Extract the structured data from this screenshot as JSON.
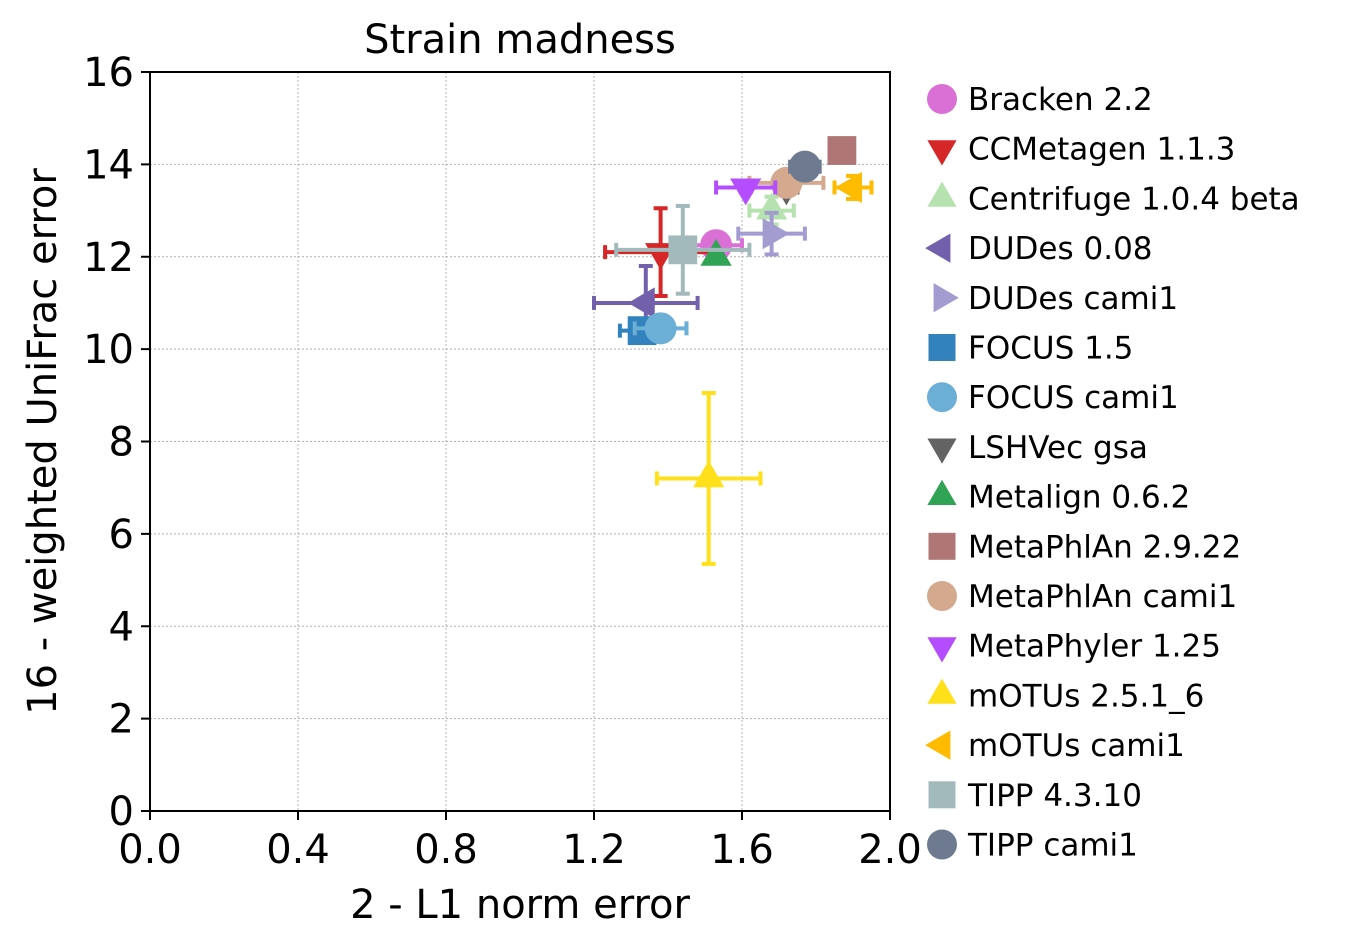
{
  "chart_data": {
    "type": "scatter",
    "title": "Strain madness",
    "xlabel": "2 - L1 norm error",
    "ylabel": "16 - weighted UniFrac error",
    "xlim": [
      0.0,
      2.0
    ],
    "ylim": [
      0,
      16
    ],
    "xticks": [
      "0.0",
      "0.4",
      "0.8",
      "1.2",
      "1.6",
      "2.0"
    ],
    "yticks": [
      "0",
      "2",
      "4",
      "6",
      "8",
      "10",
      "12",
      "14",
      "16"
    ],
    "grid": true,
    "legend_position": "right, outside plot",
    "series": [
      {
        "name": "Bracken 2.2",
        "marker": "circle",
        "color": "#da70d6",
        "x": 1.53,
        "y": 12.25,
        "xerr": 0.07,
        "yerr": 0.0
      },
      {
        "name": "CCMetagen 1.1.3",
        "marker": "triangle-down",
        "color": "#d62728",
        "x": 1.38,
        "y": 12.1,
        "xerr": 0.15,
        "yerr": 0.95
      },
      {
        "name": "Centrifuge 1.0.4 beta",
        "marker": "triangle-up",
        "color": "#b5e2ae",
        "x": 1.68,
        "y": 13.0,
        "xerr": 0.06,
        "yerr": 0.3
      },
      {
        "name": "DUDes 0.08",
        "marker": "triangle-left",
        "color": "#7260ad",
        "x": 1.34,
        "y": 11.0,
        "xerr": 0.14,
        "yerr": 0.8
      },
      {
        "name": "DUDes cami1",
        "marker": "triangle-right",
        "color": "#a29cd0",
        "x": 1.68,
        "y": 12.5,
        "xerr": 0.09,
        "yerr": 0.45
      },
      {
        "name": "FOCUS 1.5",
        "marker": "square",
        "color": "#3182bd",
        "x": 1.33,
        "y": 10.4,
        "xerr": 0.06,
        "yerr": 0.2
      },
      {
        "name": "FOCUS cami1",
        "marker": "circle",
        "color": "#6baed6",
        "x": 1.38,
        "y": 10.45,
        "xerr": 0.07,
        "yerr": 0.0
      },
      {
        "name": "LSHVec gsa",
        "marker": "triangle-down",
        "color": "#636363",
        "x": 1.72,
        "y": 13.5,
        "xerr": 0.03,
        "yerr": 0.15
      },
      {
        "name": "Metalign 0.6.2",
        "marker": "triangle-up",
        "color": "#31a354",
        "x": 1.53,
        "y": 12.0,
        "xerr": 0.0,
        "yerr": 0.0
      },
      {
        "name": "MetaPhlAn 2.9.22",
        "marker": "square",
        "color": "#b07575",
        "x": 1.87,
        "y": 14.3,
        "xerr": 0.03,
        "yerr": 0.1
      },
      {
        "name": "MetaPhlAn cami1",
        "marker": "circle",
        "color": "#d4a98e",
        "x": 1.72,
        "y": 13.6,
        "xerr": 0.1,
        "yerr": 0.0
      },
      {
        "name": "MetaPhyler 1.25",
        "marker": "triangle-down",
        "color": "#b44dff",
        "x": 1.61,
        "y": 13.5,
        "xerr": 0.08,
        "yerr": 0.1
      },
      {
        "name": "mOTUs 2.5.1_6",
        "marker": "triangle-up",
        "color": "#ffe01a",
        "x": 1.51,
        "y": 7.2,
        "xerr": 0.14,
        "yerr": 1.85
      },
      {
        "name": "mOTUs cami1",
        "marker": "triangle-left",
        "color": "#ffbb00",
        "x": 1.9,
        "y": 13.5,
        "xerr": 0.05,
        "yerr": 0.25
      },
      {
        "name": "TIPP 4.3.10",
        "marker": "square",
        "color": "#a2babb",
        "x": 1.44,
        "y": 12.15,
        "xerr": 0.18,
        "yerr": 0.95
      },
      {
        "name": "TIPP cami1",
        "marker": "circle",
        "color": "#6e7a90",
        "x": 1.77,
        "y": 13.95,
        "xerr": 0.04,
        "yerr": 0.0
      }
    ]
  }
}
